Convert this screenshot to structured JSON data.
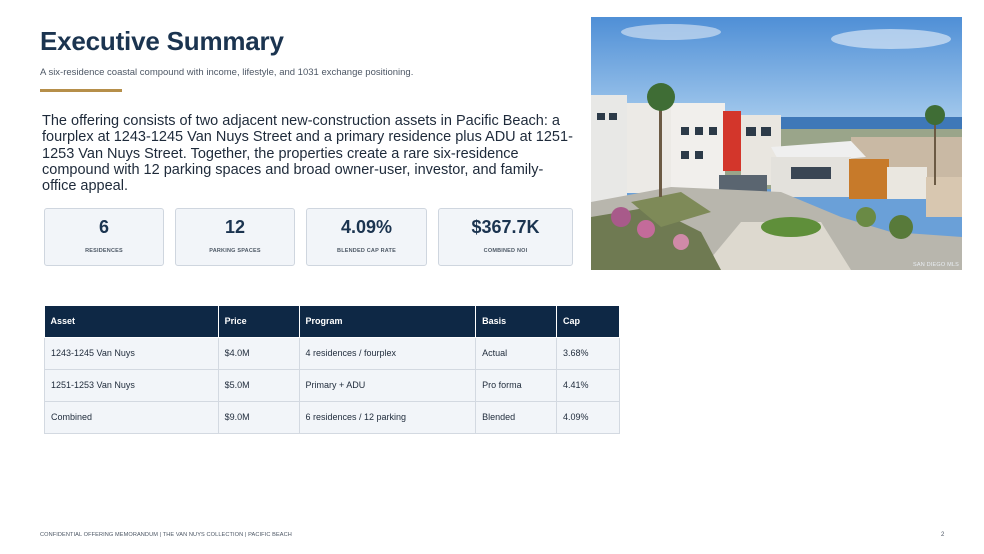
{
  "header": {
    "title": "Executive Summary",
    "subtitle": "A six-residence coastal compound with income, lifestyle, and 1031 exchange positioning.",
    "accent_color": "#b68f4a"
  },
  "intro": "The offering consists of two adjacent new-construction assets in Pacific Beach: a fourplex at 1243-1245 Van Nuys Street and a primary residence plus ADU at 1251-1253 Van Nuys Street. Together, the properties create a rare six-residence compound with 12 parking spaces and broad owner-user, investor, and family-office appeal.",
  "photo": {
    "credit": "SAN DIEGO MLS"
  },
  "stats": [
    {
      "value": "6",
      "label": "RESIDENCES"
    },
    {
      "value": "12",
      "label": "PARKING SPACES"
    },
    {
      "value": "4.09%",
      "label": "BLENDED CAP RATE"
    },
    {
      "value": "$367.7K",
      "label": "COMBINED NOI"
    }
  ],
  "table": {
    "columns": [
      "Asset",
      "Price",
      "Program",
      "Basis",
      "Cap"
    ],
    "rows": [
      [
        "1243-1245 Van Nuys",
        "$4.0M",
        "4 residences / fourplex",
        "Actual",
        "3.68%"
      ],
      [
        "1251-1253 Van Nuys",
        "$5.0M",
        "Primary + ADU",
        "Pro forma",
        "4.41%"
      ],
      [
        "Combined",
        "$9.0M",
        "6 residences / 12 parking",
        "Blended",
        "4.09%"
      ]
    ],
    "header_color": "#0e2845"
  },
  "footer": {
    "text": "CONFIDENTIAL OFFERING MEMORANDUM | THE VAN NUYS COLLECTION | PACIFIC BEACH",
    "page": "2"
  }
}
